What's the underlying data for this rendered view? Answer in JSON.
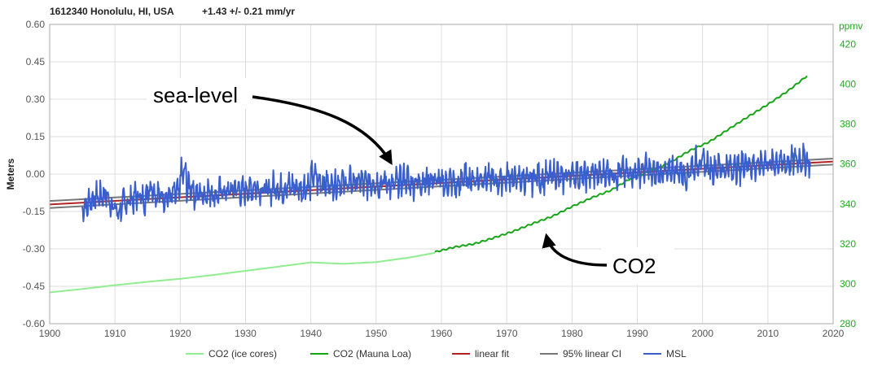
{
  "chart_data": {
    "type": "line",
    "title": {
      "station": "1612340 Honolulu, HI, USA",
      "trend": "+1.43 +/- 0.21 mm/yr"
    },
    "xlabel": "",
    "ylabel": "Meters",
    "y2label": "ppmv",
    "xlim": [
      1900,
      2020
    ],
    "ylim": [
      -0.6,
      0.6
    ],
    "y2lim": [
      280,
      430
    ],
    "x_ticks": [
      "1900",
      "1910",
      "1920",
      "1930",
      "1940",
      "1950",
      "1960",
      "1970",
      "1980",
      "1990",
      "2000",
      "2010",
      "2020"
    ],
    "y_ticks": [
      "0.60",
      "0.45",
      "0.30",
      "0.15",
      "0.00",
      "-0.15",
      "-0.30",
      "-0.45",
      "-0.60"
    ],
    "y2_ticks": [
      "420",
      "400",
      "380",
      "360",
      "340",
      "320",
      "300",
      "280"
    ],
    "grid": true,
    "legend_position": "bottom",
    "legend": [
      "CO2 (ice cores)",
      "CO2 (Mauna Loa)",
      "linear fit",
      "95% linear CI",
      "MSL"
    ],
    "annotations": [
      "sea-level",
      "CO2"
    ],
    "colors": {
      "co2_ice": "#90ee90",
      "co2_mauna": "#16a516",
      "linear_fit": "#b22222",
      "ci": "#777777",
      "msl": "#3a5fcd",
      "grid": "#dddddd",
      "right_axis": "#22aa22"
    },
    "series": [
      {
        "name": "CO2 (ice cores)",
        "axis": "right",
        "x": [
          1900,
          1905,
          1910,
          1915,
          1920,
          1925,
          1930,
          1935,
          1940,
          1945,
          1950,
          1955,
          1959
        ],
        "values": [
          295.7,
          297.4,
          299.3,
          301.0,
          302.5,
          304.4,
          306.5,
          308.6,
          310.7,
          310.0,
          310.9,
          313.1,
          315.5
        ]
      },
      {
        "name": "CO2 (Mauna Loa)",
        "axis": "right",
        "x": [
          1959,
          1962,
          1965,
          1968,
          1971,
          1974,
          1977,
          1980,
          1983,
          1986,
          1989,
          1992,
          1995,
          1998,
          2001,
          2004,
          2007,
          2010,
          2013,
          2016
        ],
        "values": [
          315.9,
          318.4,
          320.0,
          323.0,
          326.3,
          330.2,
          333.8,
          338.7,
          343.1,
          346.9,
          352.9,
          356.4,
          360.8,
          366.7,
          371.1,
          377.5,
          383.8,
          389.9,
          396.5,
          404.2
        ]
      },
      {
        "name": "linear fit",
        "axis": "left",
        "x": [
          1900,
          2020
        ],
        "values": [
          -0.122,
          0.05
        ]
      },
      {
        "name": "95% linear CI",
        "axis": "left",
        "x": [
          1900,
          2020
        ],
        "upper": [
          -0.108,
          0.062
        ],
        "lower": [
          -0.136,
          0.038
        ]
      },
      {
        "name": "MSL",
        "axis": "left",
        "x_start": 1905,
        "x_end": 2016.5,
        "annual_means": [
          -0.13,
          -0.1,
          -0.09,
          -0.08,
          -0.12,
          -0.15,
          -0.12,
          -0.1,
          -0.09,
          -0.1,
          -0.05,
          -0.08,
          -0.09,
          -0.09,
          -0.08,
          0.0,
          -0.05,
          -0.08,
          -0.08,
          -0.07,
          -0.08,
          -0.07,
          -0.07,
          -0.06,
          -0.07,
          -0.06,
          -0.05,
          -0.06,
          -0.07,
          -0.05,
          -0.06,
          -0.05,
          -0.05,
          -0.06,
          -0.05,
          -0.01,
          -0.03,
          -0.04,
          -0.04,
          -0.03,
          -0.04,
          -0.03,
          -0.03,
          -0.04,
          -0.03,
          -0.04,
          -0.03,
          -0.05,
          -0.03,
          -0.02,
          -0.04,
          -0.03,
          -0.03,
          -0.02,
          -0.03,
          -0.04,
          -0.03,
          -0.05,
          -0.01,
          -0.02,
          -0.02,
          -0.01,
          -0.02,
          -0.03,
          -0.02,
          -0.01,
          -0.02,
          -0.02,
          -0.03,
          -0.01,
          -0.02,
          -0.01,
          0.0,
          -0.02,
          0.0,
          0.0,
          -0.01,
          -0.01,
          0.0,
          0.0,
          0.01,
          0.0,
          0.01,
          0.0,
          0.01,
          0.01,
          0.02,
          0.0,
          0.01,
          0.0,
          0.02,
          0.01,
          0.0,
          0.03,
          0.05,
          0.04,
          0.02,
          0.03,
          0.02,
          0.03,
          0.02,
          0.05,
          0.04,
          0.03,
          0.05,
          0.04,
          0.05,
          0.04,
          0.05,
          0.06,
          0.06,
          0.05
        ]
      }
    ]
  }
}
